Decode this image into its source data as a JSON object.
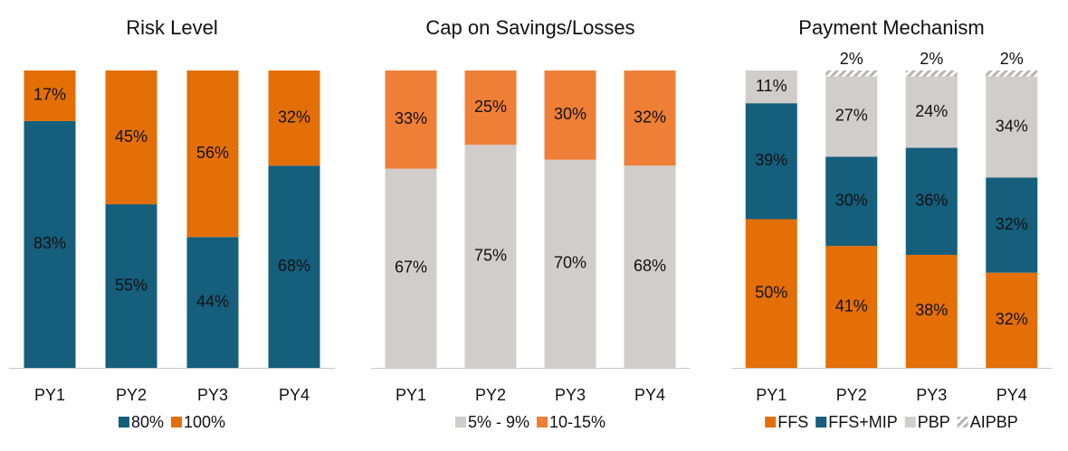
{
  "chart_data": [
    {
      "type": "stacked_bar",
      "title": "Risk Level",
      "categories": [
        "PY1",
        "PY2",
        "PY3",
        "PY4"
      ],
      "ylim": [
        0,
        100
      ],
      "series": [
        {
          "name": "80%",
          "color": "#155e7c",
          "values": [
            83,
            55,
            44,
            68
          ],
          "value_labels": [
            "83%",
            "55%",
            "44%",
            "68%"
          ]
        },
        {
          "name": "100%",
          "color": "#e36f06",
          "values": [
            17,
            45,
            56,
            32
          ],
          "value_labels": [
            "17%",
            "45%",
            "56%",
            "32%"
          ]
        }
      ]
    },
    {
      "type": "stacked_bar",
      "title": "Cap on Savings/Losses",
      "categories": [
        "PY1",
        "PY2",
        "PY3",
        "PY4"
      ],
      "ylim": [
        0,
        100
      ],
      "series": [
        {
          "name": "5% - 9%",
          "color": "#d1cdca",
          "values": [
            67,
            75,
            70,
            68
          ],
          "value_labels": [
            "67%",
            "75%",
            "70%",
            "68%"
          ]
        },
        {
          "name": "10-15%",
          "color": "#ef7f37",
          "values": [
            33,
            25,
            30,
            32
          ],
          "value_labels": [
            "33%",
            "25%",
            "30%",
            "32%"
          ]
        }
      ]
    },
    {
      "type": "stacked_bar",
      "title": "Payment Mechanism",
      "categories": [
        "PY1",
        "PY2",
        "PY3",
        "PY4"
      ],
      "ylim": [
        0,
        100
      ],
      "series": [
        {
          "name": "FFS",
          "color": "#e36f06",
          "values": [
            50,
            41,
            38,
            32
          ],
          "value_labels": [
            "50%",
            "41%",
            "38%",
            "32%"
          ]
        },
        {
          "name": "FFS+MIP",
          "color": "#155e7c",
          "values": [
            39,
            30,
            36,
            32
          ],
          "value_labels": [
            "39%",
            "30%",
            "36%",
            "32%"
          ]
        },
        {
          "name": "PBP",
          "color": "#d1cdca",
          "values": [
            11,
            27,
            24,
            34
          ],
          "value_labels": [
            "11%",
            "27%",
            "24%",
            "34%"
          ]
        },
        {
          "name": "AIPBP",
          "color": "#b8b4b0",
          "hatch": true,
          "values": [
            null,
            2,
            2,
            2
          ],
          "value_labels": [
            null,
            "2%",
            "2%",
            "2%"
          ]
        }
      ]
    }
  ]
}
